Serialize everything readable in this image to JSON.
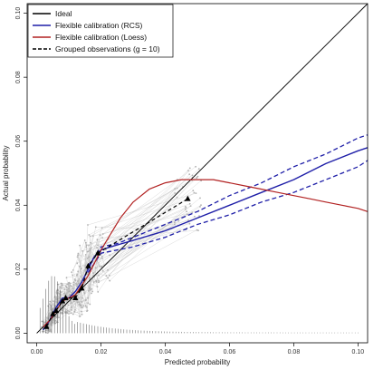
{
  "chart_data": {
    "type": "line",
    "title": "",
    "xlabel": "Predicted probability",
    "ylabel": "Actual probability",
    "xlim": [
      -0.003,
      0.103
    ],
    "ylim": [
      -0.003,
      0.103
    ],
    "x_ticks": [
      {
        "value": 0.0,
        "label": "0.00"
      },
      {
        "value": 0.02,
        "label": "0.02"
      },
      {
        "value": 0.04,
        "label": "0.04"
      },
      {
        "value": 0.06,
        "label": "0.06"
      },
      {
        "value": 0.08,
        "label": "0.08"
      },
      {
        "value": 0.1,
        "label": "0.10"
      }
    ],
    "y_ticks": [
      {
        "value": 0.0,
        "label": "0.00"
      },
      {
        "value": 0.02,
        "label": "0.02"
      },
      {
        "value": 0.04,
        "label": "0.04"
      },
      {
        "value": 0.06,
        "label": "0.06"
      },
      {
        "value": 0.08,
        "label": "0.08"
      },
      {
        "value": 0.1,
        "label": "0.10"
      }
    ],
    "grid": false,
    "legend_position": "top-left",
    "legend": [
      {
        "label": "Ideal",
        "color": "#000000",
        "dash": "solid"
      },
      {
        "label": "Flexible calibration (RCS)",
        "color": "#1f1fa8",
        "dash": "solid"
      },
      {
        "label": "Flexible calibration (Loess)",
        "color": "#b22222",
        "dash": "solid"
      },
      {
        "label": "Grouped observations (g = 10)",
        "color": "#000000",
        "dash": "dashed"
      }
    ],
    "series": [
      {
        "role": "ideal",
        "color": "#000000",
        "points": [
          [
            0.0,
            0.0
          ],
          [
            0.103,
            0.103
          ]
        ]
      },
      {
        "role": "rcs",
        "color": "#1f1fa8",
        "points": [
          [
            0.002,
            0.001
          ],
          [
            0.004,
            0.004
          ],
          [
            0.006,
            0.008
          ],
          [
            0.008,
            0.011
          ],
          [
            0.01,
            0.011
          ],
          [
            0.012,
            0.013
          ],
          [
            0.014,
            0.016
          ],
          [
            0.016,
            0.02
          ],
          [
            0.018,
            0.024
          ],
          [
            0.02,
            0.026
          ],
          [
            0.023,
            0.027
          ],
          [
            0.03,
            0.029
          ],
          [
            0.04,
            0.032
          ],
          [
            0.05,
            0.036
          ],
          [
            0.06,
            0.04
          ],
          [
            0.07,
            0.044
          ],
          [
            0.08,
            0.048
          ],
          [
            0.09,
            0.053
          ],
          [
            0.1,
            0.057
          ],
          [
            0.103,
            0.058
          ]
        ]
      },
      {
        "role": "rcs-ci-upper",
        "color": "#1f1fa8",
        "points": [
          [
            0.016,
            0.021
          ],
          [
            0.02,
            0.027
          ],
          [
            0.025,
            0.028
          ],
          [
            0.03,
            0.03
          ],
          [
            0.04,
            0.034
          ],
          [
            0.05,
            0.038
          ],
          [
            0.06,
            0.043
          ],
          [
            0.07,
            0.047
          ],
          [
            0.08,
            0.052
          ],
          [
            0.09,
            0.056
          ],
          [
            0.1,
            0.061
          ],
          [
            0.103,
            0.062
          ]
        ]
      },
      {
        "role": "rcs-ci-lower",
        "color": "#1f1fa8",
        "points": [
          [
            0.016,
            0.019
          ],
          [
            0.02,
            0.025
          ],
          [
            0.025,
            0.026
          ],
          [
            0.03,
            0.027
          ],
          [
            0.04,
            0.03
          ],
          [
            0.05,
            0.034
          ],
          [
            0.06,
            0.037
          ],
          [
            0.07,
            0.041
          ],
          [
            0.08,
            0.044
          ],
          [
            0.09,
            0.048
          ],
          [
            0.1,
            0.052
          ],
          [
            0.103,
            0.054
          ]
        ]
      },
      {
        "role": "loess",
        "color": "#b22222",
        "points": [
          [
            0.002,
            0.002
          ],
          [
            0.004,
            0.004
          ],
          [
            0.006,
            0.007
          ],
          [
            0.008,
            0.01
          ],
          [
            0.01,
            0.011
          ],
          [
            0.012,
            0.012
          ],
          [
            0.014,
            0.015
          ],
          [
            0.016,
            0.018
          ],
          [
            0.018,
            0.022
          ],
          [
            0.02,
            0.026
          ],
          [
            0.023,
            0.031
          ],
          [
            0.026,
            0.036
          ],
          [
            0.03,
            0.041
          ],
          [
            0.035,
            0.045
          ],
          [
            0.04,
            0.047
          ],
          [
            0.045,
            0.048
          ],
          [
            0.05,
            0.048
          ],
          [
            0.055,
            0.048
          ],
          [
            0.06,
            0.047
          ],
          [
            0.065,
            0.046
          ],
          [
            0.07,
            0.045
          ],
          [
            0.075,
            0.044
          ],
          [
            0.08,
            0.043
          ],
          [
            0.085,
            0.042
          ],
          [
            0.09,
            0.041
          ],
          [
            0.095,
            0.04
          ],
          [
            0.1,
            0.039
          ],
          [
            0.103,
            0.038
          ]
        ]
      },
      {
        "role": "grouped",
        "color": "#000000",
        "points": [
          [
            0.003,
            0.002
          ],
          [
            0.005,
            0.006
          ],
          [
            0.006,
            0.007
          ],
          [
            0.008,
            0.01
          ],
          [
            0.009,
            0.011
          ],
          [
            0.012,
            0.011
          ],
          [
            0.014,
            0.014
          ],
          [
            0.016,
            0.021
          ],
          [
            0.019,
            0.025
          ],
          [
            0.047,
            0.042
          ]
        ]
      }
    ]
  }
}
